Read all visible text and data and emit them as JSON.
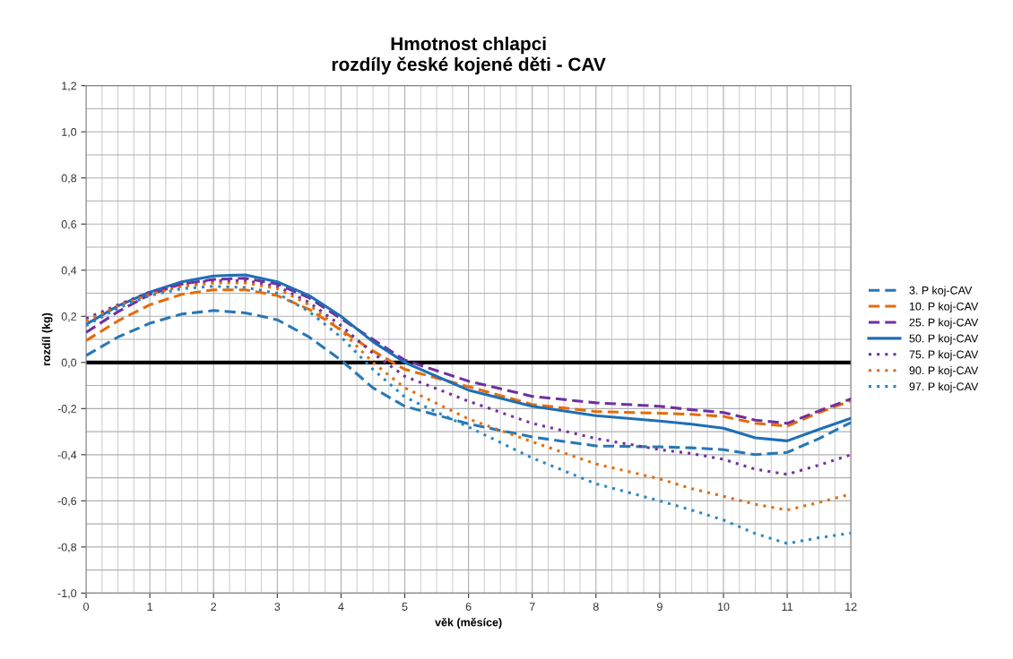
{
  "chart_data": {
    "type": "line",
    "title": "Hmotnost chlapci\nrozdíly české kojené děti - CAV",
    "xlabel": "věk (měsíce)",
    "ylabel": "rozdíl (kg)",
    "xlim": [
      0,
      12
    ],
    "xticks": [
      0,
      1,
      2,
      3,
      4,
      5,
      6,
      7,
      8,
      9,
      10,
      11,
      12
    ],
    "ylim": [
      -1.0,
      1.2
    ],
    "yticks": [
      {
        "value": -1.0,
        "label": "-1,0"
      },
      {
        "value": -0.8,
        "label": "-0,8"
      },
      {
        "value": -0.6,
        "label": "-0,6"
      },
      {
        "value": -0.4,
        "label": "-0,4"
      },
      {
        "value": -0.2,
        "label": "-0,2"
      },
      {
        "value": 0.0,
        "label": "0,0"
      },
      {
        "value": 0.2,
        "label": "0,2"
      },
      {
        "value": 0.4,
        "label": "0,4"
      },
      {
        "value": 0.6,
        "label": "0,6"
      },
      {
        "value": 0.8,
        "label": "0,8"
      },
      {
        "value": 1.0,
        "label": "1,0"
      },
      {
        "value": 1.2,
        "label": "1,2"
      }
    ],
    "x": [
      0,
      0.5,
      1,
      1.5,
      2,
      2.5,
      3,
      3.5,
      4,
      4.5,
      5,
      6,
      7,
      8,
      9,
      9.5,
      10,
      10.5,
      11,
      11.5,
      12
    ],
    "grid": true,
    "legend": "right",
    "marker": "none",
    "ref_lines": [
      {
        "axis": "y",
        "value": 0,
        "label": null,
        "color": "#000000",
        "line_style": "solid"
      }
    ],
    "series": [
      {
        "name": "3. P koj-CAV",
        "color": "#2878b5",
        "line_style": "dashed",
        "values": [
          0.03,
          0.11,
          0.17,
          0.21,
          0.225,
          0.215,
          0.185,
          0.11,
          0.01,
          -0.11,
          -0.19,
          -0.266,
          -0.323,
          -0.362,
          -0.366,
          -0.37,
          -0.378,
          -0.4,
          -0.39,
          -0.33,
          -0.26
        ]
      },
      {
        "name": "10. P koj-CAV",
        "color": "#e46c0a",
        "line_style": "dashed",
        "values": [
          0.095,
          0.18,
          0.25,
          0.295,
          0.315,
          0.315,
          0.29,
          0.23,
          0.14,
          0.05,
          -0.03,
          -0.105,
          -0.182,
          -0.213,
          -0.22,
          -0.225,
          -0.234,
          -0.264,
          -0.276,
          -0.217,
          -0.166
        ]
      },
      {
        "name": "25. P koj-CAV",
        "color": "#7030a0",
        "line_style": "dashed",
        "values": [
          0.13,
          0.22,
          0.295,
          0.34,
          0.36,
          0.365,
          0.34,
          0.28,
          0.19,
          0.1,
          0.01,
          -0.081,
          -0.147,
          -0.175,
          -0.19,
          -0.205,
          -0.217,
          -0.25,
          -0.264,
          -0.21,
          -0.158
        ]
      },
      {
        "name": "50. P koj-CAV",
        "color": "#1f6fb5",
        "line_style": "solid",
        "values": [
          0.165,
          0.245,
          0.305,
          0.35,
          0.375,
          0.38,
          0.35,
          0.29,
          0.2,
          0.09,
          0.0,
          -0.12,
          -0.19,
          -0.231,
          -0.254,
          -0.268,
          -0.285,
          -0.327,
          -0.34,
          -0.29,
          -0.242
        ]
      },
      {
        "name": "75. P koj-CAV",
        "color": "#7030a0",
        "line_style": "dotted",
        "values": [
          0.19,
          0.25,
          0.305,
          0.34,
          0.355,
          0.355,
          0.33,
          0.26,
          0.16,
          0.04,
          -0.06,
          -0.168,
          -0.264,
          -0.33,
          -0.378,
          -0.395,
          -0.42,
          -0.463,
          -0.485,
          -0.445,
          -0.4
        ]
      },
      {
        "name": "90. P koj-CAV",
        "color": "#e46c0a",
        "line_style": "dotted",
        "values": [
          0.18,
          0.245,
          0.295,
          0.33,
          0.345,
          0.345,
          0.32,
          0.25,
          0.14,
          0.0,
          -0.11,
          -0.245,
          -0.344,
          -0.44,
          -0.505,
          -0.547,
          -0.58,
          -0.615,
          -0.64,
          -0.607,
          -0.57
        ]
      },
      {
        "name": "97. P koj-CAV",
        "color": "#2a88c2",
        "line_style": "dotted",
        "values": [
          0.16,
          0.235,
          0.29,
          0.32,
          0.33,
          0.325,
          0.3,
          0.22,
          0.11,
          -0.03,
          -0.15,
          -0.28,
          -0.414,
          -0.526,
          -0.6,
          -0.64,
          -0.683,
          -0.742,
          -0.785,
          -0.76,
          -0.74
        ]
      }
    ]
  }
}
